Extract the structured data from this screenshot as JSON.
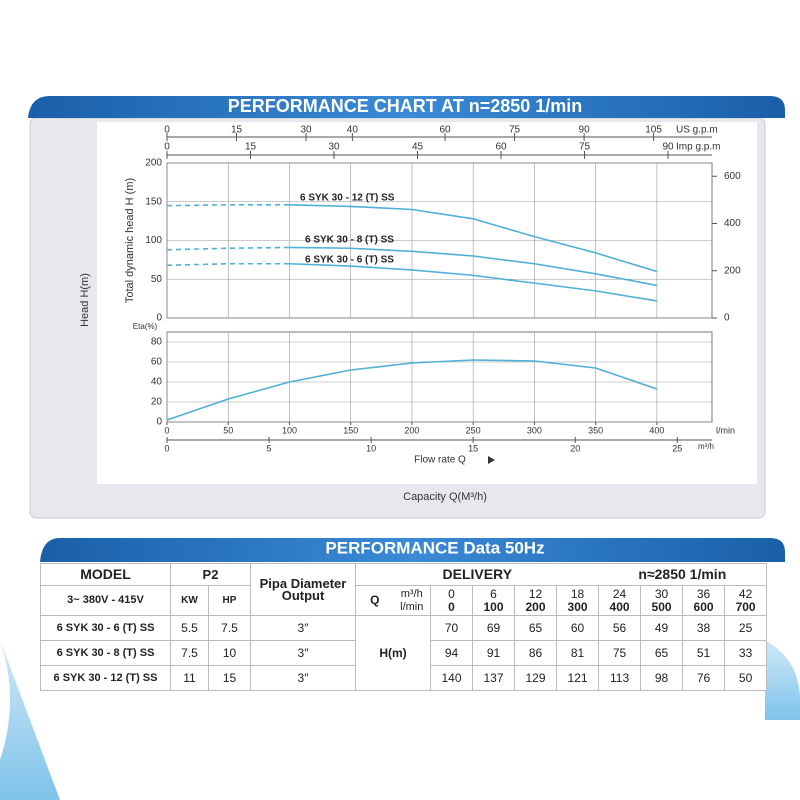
{
  "header": {
    "title": "PERFORMANCE CHART AT n=2850 1/min"
  },
  "side_label": "Head H(m)",
  "caption": "Capacity Q(M³/h)",
  "chart_data": [
    {
      "type": "line",
      "y_label": "Total dynamic head H (m)",
      "x": [
        0,
        50,
        100,
        150,
        200,
        250,
        300,
        350,
        400
      ],
      "xlim": [
        0,
        445
      ],
      "ylim": [
        0,
        200
      ],
      "yticks": [
        0,
        50,
        100,
        150,
        200
      ],
      "y2lim": [
        0,
        656
      ],
      "y2ticks": [
        0,
        200,
        400,
        600
      ],
      "grid": true,
      "top_axes": [
        {
          "label": "US g.p.m",
          "lim": [
            0,
            117.6
          ],
          "ticks": [
            0,
            15,
            30,
            40,
            60,
            75,
            90,
            105
          ]
        },
        {
          "label": "Imp g.p.m",
          "lim": [
            0,
            97.9
          ],
          "ticks": [
            0,
            15,
            30,
            45,
            60,
            75,
            90
          ]
        }
      ],
      "series": [
        {
          "name": "6 SYK 30 - 12 (T) SS",
          "color": "#4fb0d6",
          "dashed_below": 100,
          "values": [
            145,
            146,
            146,
            144,
            140,
            128,
            105,
            84,
            60
          ]
        },
        {
          "name": "6 SYK 30 - 8 (T) SS",
          "color": "#4fb0d6",
          "dashed_below": 100,
          "values": [
            88,
            90,
            91,
            90,
            86,
            80,
            70,
            57,
            42
          ]
        },
        {
          "name": "6 SYK 30 - 6 (T) SS",
          "color": "#4fb0d6",
          "dashed_below": 100,
          "values": [
            68,
            70,
            70,
            67,
            62,
            55,
            45,
            35,
            22
          ]
        }
      ]
    },
    {
      "type": "line",
      "y_label": "Eta(%)",
      "x": [
        0,
        50,
        100,
        150,
        200,
        250,
        300,
        350,
        400
      ],
      "xlim": [
        0,
        445
      ],
      "ylim": [
        0,
        90
      ],
      "yticks": [
        0,
        20,
        40,
        60,
        80
      ],
      "grid": true,
      "xticks": [
        0,
        50,
        100,
        150,
        200,
        250,
        300,
        350,
        400
      ],
      "x_unit": "l/min",
      "x_label": "Flow rate Q",
      "bottom_axes": [
        {
          "label": "m³/h",
          "lim": [
            0,
            26.7
          ],
          "ticks": [
            0,
            5,
            10,
            15,
            20,
            25
          ]
        }
      ],
      "series": [
        {
          "color": "#4fb0d6",
          "values": [
            2,
            23,
            40,
            52,
            59,
            62,
            61,
            54,
            33
          ]
        }
      ]
    }
  ],
  "table_title": "PERFORMANCE Data 50Hz",
  "table": {
    "head": {
      "model": "MODEL",
      "p2": "P2",
      "pipe": "Pipa Diameter Output",
      "delivery": "DELIVERY",
      "speed": "n≈2850 1/min"
    },
    "sub": {
      "voltage": "3~ 380V - 415V",
      "kw": "KW",
      "hp": "HP",
      "q": "Q",
      "unit_m3h": "m³/h",
      "unit_lmin": "l/min",
      "m3h": [
        0,
        6,
        12,
        18,
        24,
        30,
        36,
        42
      ],
      "lmin": [
        0,
        100,
        200,
        300,
        400,
        500,
        600,
        700
      ]
    },
    "h_label": "H(m)",
    "rows": [
      {
        "model": "6 SYK 30 - 6 (T)  SS",
        "kw": 5.5,
        "hp": 7.5,
        "pipe": "3″",
        "values": [
          70,
          69,
          65,
          60,
          56,
          49,
          38,
          25
        ]
      },
      {
        "model": "6 SYK 30 - 8 (T)  SS",
        "kw": 7.5,
        "hp": 10,
        "pipe": "3″",
        "values": [
          94,
          91,
          86,
          81,
          75,
          65,
          51,
          33
        ]
      },
      {
        "model": "6 SYK 30 - 12 (T)  SS",
        "kw": 11,
        "hp": 15,
        "pipe": "3″",
        "values": [
          140,
          137,
          129,
          121,
          113,
          98,
          76,
          50
        ]
      }
    ]
  }
}
